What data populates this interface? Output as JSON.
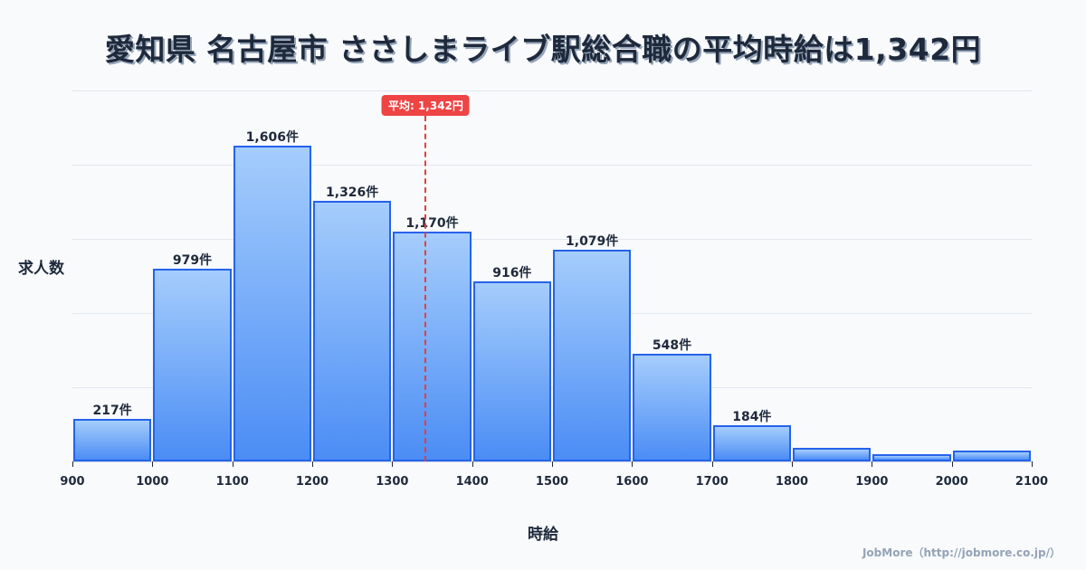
{
  "title": "愛知県 名古屋市 ささしまライブ駅総合職の平均時給は1,342円",
  "ylabel": "求人数",
  "xlabel": "時給",
  "credit": "JobMore（http://jobmore.co.jp/）",
  "mean": {
    "value": 1342,
    "label": "平均: 1,342円",
    "color": "#ef4444"
  },
  "colors": {
    "bar_border": "#2563eb",
    "bar_top": "#a5cdfc",
    "bar_bottom": "#4b8df5",
    "background": "#f8fafc"
  },
  "chart_data": {
    "type": "bar",
    "title": "愛知県 名古屋市 ささしまライブ駅総合職の平均時給は1,342円",
    "xlabel": "時給",
    "ylabel": "求人数",
    "x_ticks": [
      "900",
      "1000",
      "1100",
      "1200",
      "1300",
      "1400",
      "1500",
      "1600",
      "1700",
      "1800",
      "1900",
      "2000",
      "2100"
    ],
    "categories": [
      "900-1000",
      "1000-1100",
      "1100-1200",
      "1200-1300",
      "1300-1400",
      "1400-1500",
      "1500-1600",
      "1600-1700",
      "1700-1800",
      "1800-1900",
      "1900-2000",
      "2000-2100"
    ],
    "values": [
      217,
      979,
      1606,
      1326,
      1170,
      916,
      1079,
      548,
      184,
      71,
      35,
      53
    ],
    "labels": [
      "217件",
      "979件",
      "1,606件",
      "1,326件",
      "1,170件",
      "916件",
      "1,079件",
      "548件",
      "184件",
      "",
      "",
      ""
    ],
    "xlim": [
      900,
      2100
    ],
    "ylim": [
      0,
      1887
    ],
    "grid": true,
    "annotations": [
      {
        "type": "vline",
        "x": 1342,
        "label": "平均: 1,342円"
      }
    ]
  }
}
